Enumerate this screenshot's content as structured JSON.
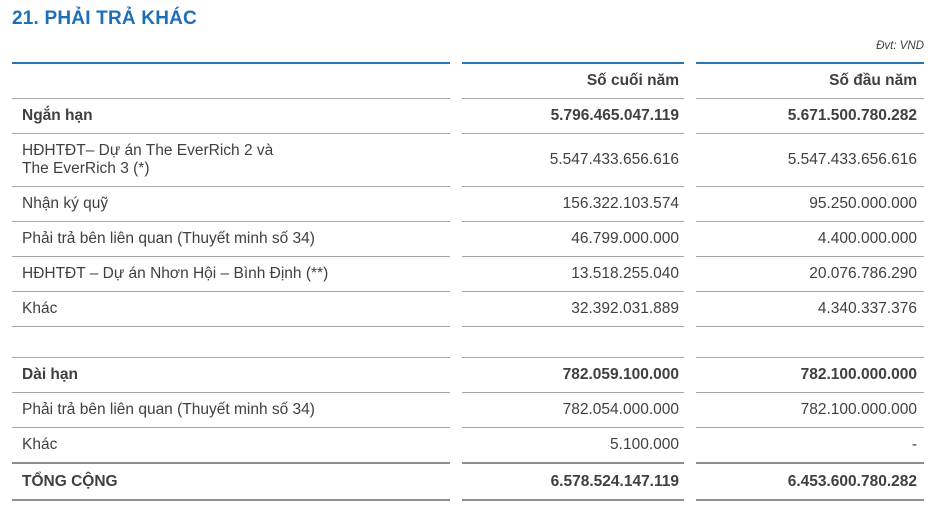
{
  "title": "21. PHẢI TRẢ KHÁC",
  "unit": "Đvt: VND",
  "columns": {
    "end": "Số cuối năm",
    "start": "Số đầu năm"
  },
  "rows": [
    {
      "label": "Ngắn hạn",
      "end": "5.796.465.047.119",
      "start": "5.671.500.780.282"
    },
    {
      "label": "HĐHTĐT– Dự án The EverRich 2 và\nThe EverRich 3 (*)",
      "end": "5.547.433.656.616",
      "start": "5.547.433.656.616"
    },
    {
      "label": "Nhận ký quỹ",
      "end": "156.322.103.574",
      "start": "95.250.000.000"
    },
    {
      "label": "Phải trả bên liên quan (Thuyết minh số 34)",
      "end": "46.799.000.000",
      "start": "4.400.000.000"
    },
    {
      "label": "HĐHTĐT – Dự án Nhơn Hội – Bình Định (**)",
      "end": "13.518.255.040",
      "start": "20.076.786.290"
    },
    {
      "label": "Khác",
      "end": "32.392.031.889",
      "start": "4.340.337.376"
    },
    {
      "label": "",
      "end": "",
      "start": ""
    },
    {
      "label": "Dài hạn",
      "end": "782.059.100.000",
      "start": "782.100.000.000"
    },
    {
      "label": "Phải trả bên liên quan (Thuyết minh số 34)",
      "end": "782.054.000.000",
      "start": "782.100.000.000"
    },
    {
      "label": "Khác",
      "end": "5.100.000",
      "start": "-"
    },
    {
      "label": "TỔNG CỘNG",
      "end": "6.578.524.147.119",
      "start": "6.453.600.780.282"
    }
  ],
  "colors": {
    "accent_blue": "#1e6fb8",
    "rule_blue": "#2e75b6",
    "border_gray": "#a6a6a6",
    "text": "#404040"
  }
}
